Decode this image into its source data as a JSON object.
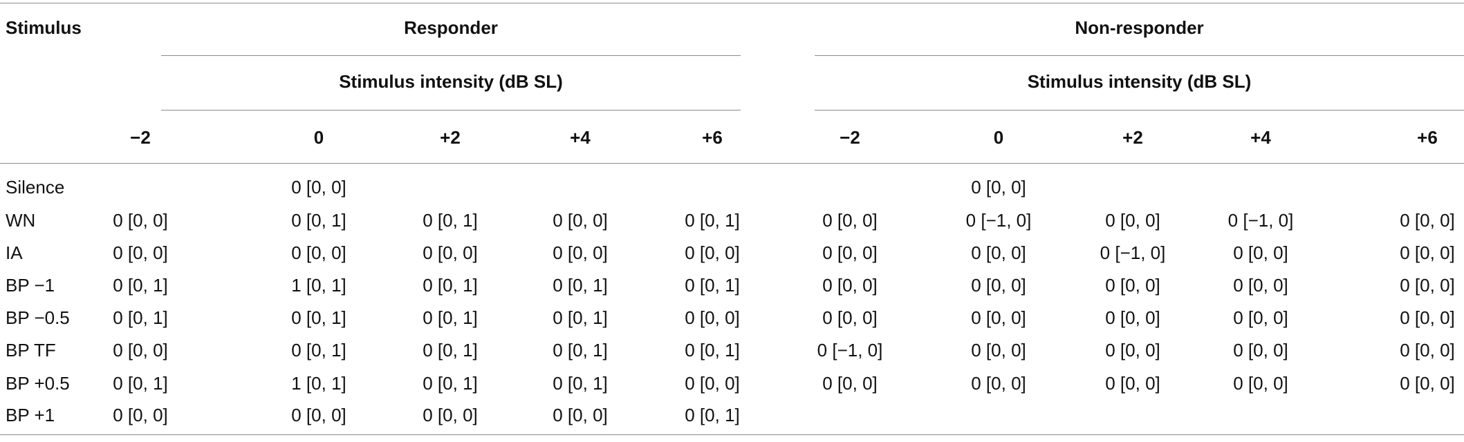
{
  "table": {
    "stimulus_header": "Stimulus",
    "groups": [
      {
        "label": "Responder",
        "subheader": "Stimulus intensity (dB SL)"
      },
      {
        "label": "Non-responder",
        "subheader": "Stimulus intensity (dB SL)"
      }
    ],
    "intensity_levels": [
      "−2",
      "0",
      "+2",
      "+4",
      "+6",
      "−2",
      "0",
      "+2",
      "+4",
      "+6"
    ],
    "rows": [
      {
        "label": "Silence",
        "cells": [
          "",
          "0 [0, 0]",
          "",
          "",
          "",
          "",
          "0 [0, 0]",
          "",
          "",
          ""
        ]
      },
      {
        "label": "WN",
        "cells": [
          "0 [0, 0]",
          "0 [0, 1]",
          "0 [0, 1]",
          "0 [0, 0]",
          "0 [0, 1]",
          "0 [0, 0]",
          "0 [−1, 0]",
          "0 [0, 0]",
          "0 [−1, 0]",
          "0 [0, 0]"
        ]
      },
      {
        "label": "IA",
        "cells": [
          "0 [0, 0]",
          "0 [0, 0]",
          "0 [0, 0]",
          "0 [0, 0]",
          "0 [0, 0]",
          "0 [0, 0]",
          "0 [0, 0]",
          "0 [−1, 0]",
          "0 [0, 0]",
          "0 [0, 0]"
        ]
      },
      {
        "label": "BP −1",
        "cells": [
          "0 [0, 1]",
          "1 [0, 1]",
          "0 [0, 1]",
          "0 [0, 1]",
          "0 [0, 1]",
          "0 [0, 0]",
          "0 [0, 0]",
          "0 [0, 0]",
          "0 [0, 0]",
          "0 [0, 0]"
        ]
      },
      {
        "label": "BP −0.5",
        "cells": [
          "0 [0, 1]",
          "0 [0, 1]",
          "0 [0, 1]",
          "0 [0, 1]",
          "0 [0, 0]",
          "0 [0, 0]",
          "0 [0, 0]",
          "0 [0, 0]",
          "0 [0, 0]",
          "0 [0, 0]"
        ]
      },
      {
        "label": "BP TF",
        "cells": [
          "0 [0, 0]",
          "0 [0, 1]",
          "0 [0, 1]",
          "0 [0, 1]",
          "0 [0, 1]",
          "0 [−1, 0]",
          "0 [0, 0]",
          "0 [0, 0]",
          "0 [0, 0]",
          "0 [0, 0]"
        ]
      },
      {
        "label": "BP +0.5",
        "cells": [
          "0 [0, 1]",
          "1 [0, 1]",
          "0 [0, 1]",
          "0 [0, 1]",
          "0 [0, 0]",
          "0 [0, 0]",
          "0 [0, 0]",
          "0 [0, 0]",
          "0 [0, 0]",
          "0 [0, 0]"
        ]
      },
      {
        "label": "BP +1",
        "cells": [
          "0 [0, 0]",
          "0 [0, 0]",
          "0 [0, 0]",
          "0 [0, 0]",
          "0 [0, 1]",
          "",
          "",
          "",
          "",
          ""
        ]
      }
    ]
  }
}
